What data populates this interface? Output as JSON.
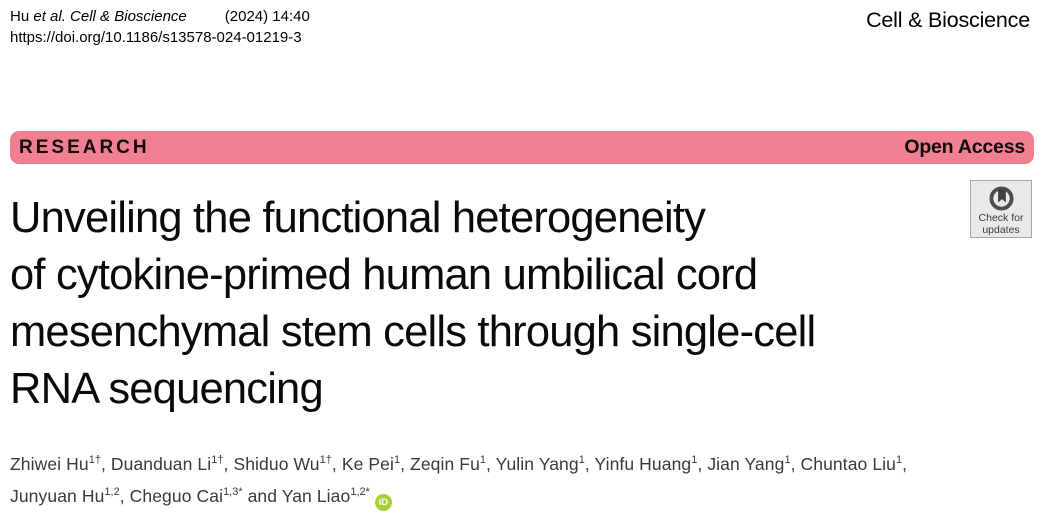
{
  "header": {
    "citation_name": "Hu",
    "citation_source": "et al. Cell & Bioscience",
    "citation_issue": "(2024) 14:40",
    "doi": "https://doi.org/10.1186/s13578-024-01219-3",
    "journal_name": "Cell & Bioscience"
  },
  "banner": {
    "type_label": "RESEARCH",
    "access_label": "Open Access",
    "color": "#F0808F"
  },
  "update_badge": {
    "line1": "Check for",
    "line2": "updates"
  },
  "article": {
    "title_lines": [
      "Unveiling the functional heterogeneity",
      "of cytokine-primed human umbilical cord",
      "mesenchymal stem cells through single-cell",
      "RNA sequencing"
    ],
    "authors": [
      {
        "name": "Zhiwei Hu",
        "sup": "1†"
      },
      {
        "name": "Duanduan Li",
        "sup": "1†"
      },
      {
        "name": "Shiduo Wu",
        "sup": "1†"
      },
      {
        "name": "Ke Pei",
        "sup": "1"
      },
      {
        "name": "Zeqin Fu",
        "sup": "1"
      },
      {
        "name": "Yulin Yang",
        "sup": "1"
      },
      {
        "name": "Yinfu Huang",
        "sup": "1"
      },
      {
        "name": "Jian Yang",
        "sup": "1"
      },
      {
        "name": "Chuntao Liu",
        "sup": "1"
      },
      {
        "name": "Junyuan Hu",
        "sup": "1,2"
      },
      {
        "name": "Cheguo Cai",
        "sup": "1,3*"
      },
      {
        "name": "Yan Liao",
        "sup": "1,2*"
      }
    ],
    "authors_separator": ", ",
    "authors_last_joiner": " and ",
    "authors_break_after": 8,
    "orcid": {
      "label": "iD",
      "color": "#A6CE39"
    }
  }
}
